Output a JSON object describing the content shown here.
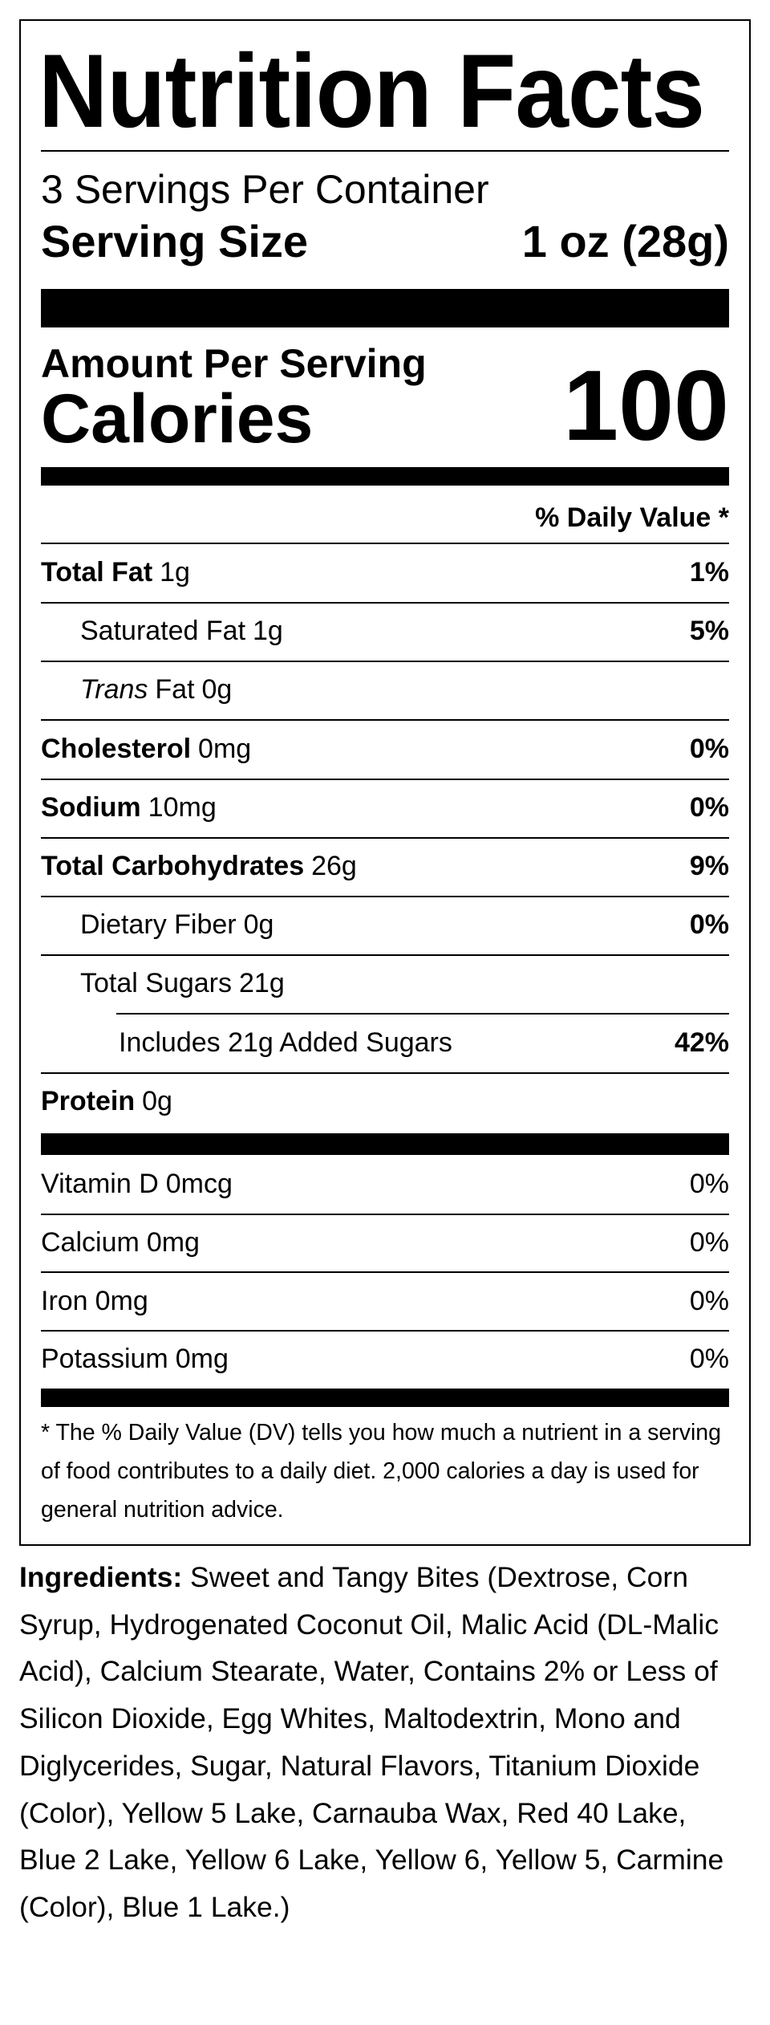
{
  "header": {
    "title": "Nutrition Facts",
    "servings_per_container": "3 Servings Per Container",
    "serving_size_label": "Serving Size",
    "serving_size_value": "1 oz (28g)"
  },
  "calories": {
    "amount_per_serving": "Amount Per Serving",
    "label": "Calories",
    "value": "100"
  },
  "daily_value_header": "% Daily Value *",
  "nutrients": [
    {
      "label": "Total Fat",
      "amount": "1g",
      "dv": "1%",
      "bold": true,
      "level": 0
    },
    {
      "label": "Saturated Fat",
      "amount": "1g",
      "dv": "5%",
      "bold": false,
      "level": 1
    },
    {
      "label_italic": "Trans",
      "label": "Fat",
      "amount": "0g",
      "bold": false,
      "level": 1
    },
    {
      "label": "Cholesterol",
      "amount": "0mg",
      "dv": "0%",
      "bold": true,
      "level": 0
    },
    {
      "label": "Sodium",
      "amount": "10mg",
      "dv": "0%",
      "bold": true,
      "level": 0
    },
    {
      "label": "Total Carbohydrates",
      "amount": "26g",
      "dv": "9%",
      "bold": true,
      "level": 0
    },
    {
      "label": "Dietary Fiber",
      "amount": "0g",
      "dv": "0%",
      "bold": false,
      "level": 1
    },
    {
      "label": "Total Sugars",
      "amount": "21g",
      "bold": false,
      "level": 1
    },
    {
      "label": "Includes 21g Added Sugars",
      "dv": "42%",
      "bold": false,
      "level": 2
    },
    {
      "label": "Protein",
      "amount": "0g",
      "bold": true,
      "level": 0
    }
  ],
  "vitamins": [
    {
      "label": "Vitamin D",
      "amount": "0mcg",
      "dv": "0%"
    },
    {
      "label": "Calcium",
      "amount": "0mg",
      "dv": "0%"
    },
    {
      "label": "Iron",
      "amount": "0mg",
      "dv": "0%"
    },
    {
      "label": "Potassium",
      "amount": "0mg",
      "dv": "0%"
    }
  ],
  "footnote": "* The % Daily Value (DV) tells you how much a nutrient in a serving of food contributes to a daily diet. 2,000 calories a day is used for general nutrition advice.",
  "ingredients": {
    "label": "Ingredients:",
    "text": "Sweet and Tangy Bites (Dextrose, Corn Syrup, Hydrogenated Coconut Oil, Malic Acid (DL-Malic Acid), Calcium Stearate, Water, Contains 2% or Less of Silicon Dioxide, Egg Whites, Maltodextrin, Mono and Diglycerides, Sugar, Natural Flavors, Titanium Dioxide (Color), Yellow 5 Lake, Carnauba Wax, Red 40 Lake, Blue 2 Lake, Yellow 6 Lake, Yellow 6, Yellow 5, Carmine (Color), Blue 1 Lake.)"
  }
}
